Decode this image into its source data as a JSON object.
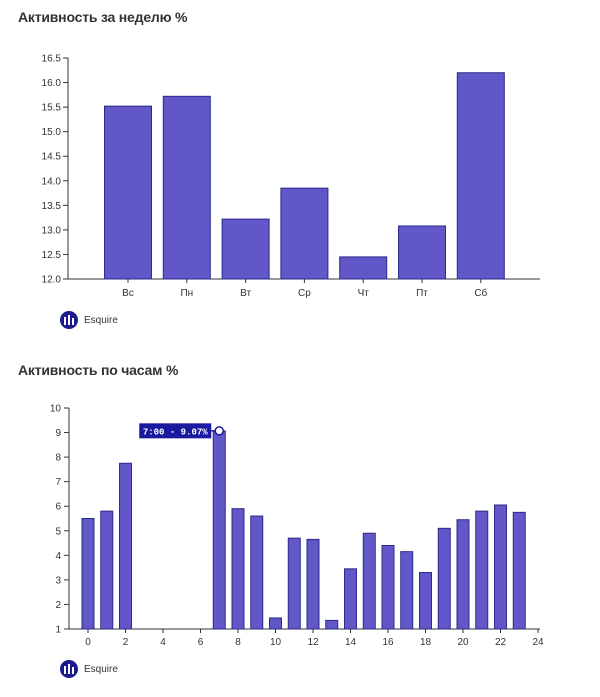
{
  "colors": {
    "bar": "#6257c8",
    "bar_stroke": "#2b2b8a",
    "axis": "#333333",
    "legend_icon": "#1a1a8c",
    "tooltip_bg": "#1a1aa0"
  },
  "legend_icon_name": "bar-chart-icon",
  "chart_data": [
    {
      "type": "bar",
      "title": "Активность за неделю %",
      "categories": [
        "Вс",
        "Пн",
        "Вт",
        "Ср",
        "Чт",
        "Пт",
        "Сб"
      ],
      "series": [
        {
          "name": "Esquire",
          "values": [
            15.52,
            15.72,
            13.22,
            13.85,
            12.45,
            13.08,
            16.2
          ]
        }
      ],
      "ylim": [
        12.0,
        16.5
      ],
      "yticks": [
        "12.0",
        "12.5",
        "13.0",
        "13.5",
        "14.0",
        "14.5",
        "15.0",
        "15.5",
        "16.0",
        "16.5"
      ],
      "legend": "bottom-left",
      "grid": false
    },
    {
      "type": "bar",
      "title": "Активность по часам %",
      "x": [
        0,
        1,
        2,
        3,
        4,
        5,
        6,
        7,
        8,
        9,
        10,
        11,
        12,
        13,
        14,
        15,
        16,
        17,
        18,
        19,
        20,
        21,
        22,
        23
      ],
      "series": [
        {
          "name": "Esquire",
          "values": [
            5.5,
            5.8,
            7.75,
            null,
            null,
            null,
            null,
            9.07,
            5.9,
            5.6,
            1.45,
            4.7,
            4.65,
            1.35,
            3.45,
            4.9,
            4.4,
            4.15,
            3.3,
            5.1,
            5.45,
            5.8,
            6.05,
            5.75
          ]
        }
      ],
      "ylim": [
        1,
        10
      ],
      "yticks": [
        "1",
        "2",
        "3",
        "4",
        "5",
        "6",
        "7",
        "8",
        "9",
        "10"
      ],
      "xticks": [
        "0",
        "2",
        "4",
        "6",
        "8",
        "10",
        "12",
        "14",
        "16",
        "18",
        "20",
        "22",
        "24"
      ],
      "xlim": [
        -1,
        24
      ],
      "legend": "bottom-left",
      "grid": false,
      "tooltip": {
        "text": "7:00 - 9.07%",
        "x": 7,
        "y": 9.07
      }
    }
  ]
}
